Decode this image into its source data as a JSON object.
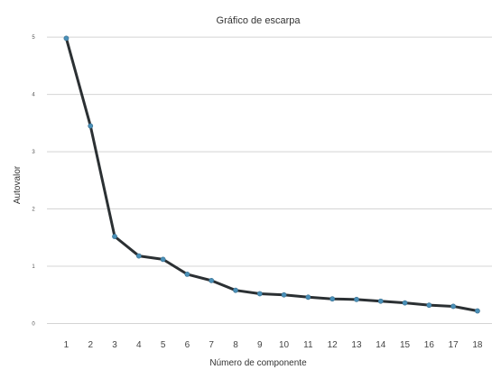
{
  "chart_data": {
    "type": "line",
    "title": "Gráfico de escarpa",
    "xlabel": "Número de componente",
    "ylabel": "Autovalor",
    "x": [
      1,
      2,
      3,
      4,
      5,
      6,
      7,
      8,
      9,
      10,
      11,
      12,
      13,
      14,
      15,
      16,
      17,
      18
    ],
    "x_tick_labels": [
      "1",
      "2",
      "3",
      "4",
      "5",
      "6",
      "7",
      "8",
      "9",
      "10",
      "11",
      "12",
      "13",
      "14",
      "15",
      "16",
      "17",
      "18"
    ],
    "y_tick_labels": [
      "0",
      "1",
      "2",
      "3",
      "4",
      "5"
    ],
    "y_ticks": [
      0,
      1,
      2,
      3,
      4,
      5
    ],
    "ylim": [
      -0.15,
      5.05
    ],
    "xlim": [
      0.2,
      18.6
    ],
    "grid": "horizontal",
    "series": [
      {
        "values": [
          4.98,
          3.45,
          1.52,
          1.18,
          1.12,
          0.86,
          0.75,
          0.58,
          0.52,
          0.5,
          0.46,
          0.43,
          0.42,
          0.39,
          0.36,
          0.32,
          0.3,
          0.22
        ],
        "line_color": "#2b3033",
        "marker_color": "#4a90b8"
      }
    ]
  }
}
